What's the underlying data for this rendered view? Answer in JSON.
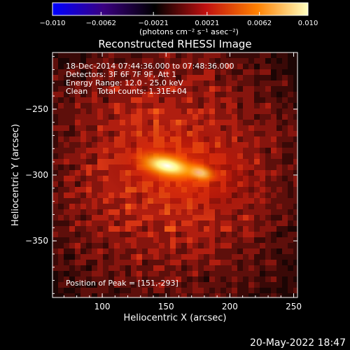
{
  "chart_data": {
    "type": "heatmap",
    "title": "Reconstructed RHESSI Image",
    "xlabel": "Heliocentric X (arcsec)",
    "ylabel": "Heliocentric Y (arcsec)",
    "xlim": [
      61,
      253
    ],
    "ylim": [
      -393,
      -207
    ],
    "x_ticks": [
      100,
      150,
      200,
      250
    ],
    "y_ticks": [
      -250,
      -300,
      -350
    ],
    "x_tick_labels": [
      "100",
      "150",
      "200",
      "250"
    ],
    "y_tick_labels": [
      "−250",
      "−300",
      "−350"
    ],
    "colorbar": {
      "range": [
        -0.01,
        0.01
      ],
      "tick_values": [
        -0.01,
        -0.0062,
        -0.0021,
        0.0021,
        0.0062,
        0.01
      ],
      "tick_labels": [
        "−0.010",
        "−0.0062",
        "−0.0021",
        "0.0021",
        "0.0062",
        "0.010"
      ],
      "unit_label": "(photons cm⁻² s⁻¹ asec⁻²)",
      "colors": [
        "#0000ff",
        "#3a0080",
        "#000000",
        "#c01010",
        "#ff8000",
        "#ffffc0"
      ]
    },
    "annotations": {
      "time_range": "18-Dec-2014 07:44:36.000 to 07:48:36.000",
      "detectors": "Detectors: 3F 6F 7F 9F, Att 1",
      "energy_range": "Energy Range: 12.0 - 25.0 keV",
      "clean": "Clean    Total counts: 1.31E+04",
      "peak": "Position of Peak = [151,-293]"
    },
    "source": {
      "peak_x": 151,
      "peak_y": -293,
      "secondary_x": 175,
      "secondary_y": -298
    },
    "date_stamp": "20-May-2022 18:47"
  }
}
